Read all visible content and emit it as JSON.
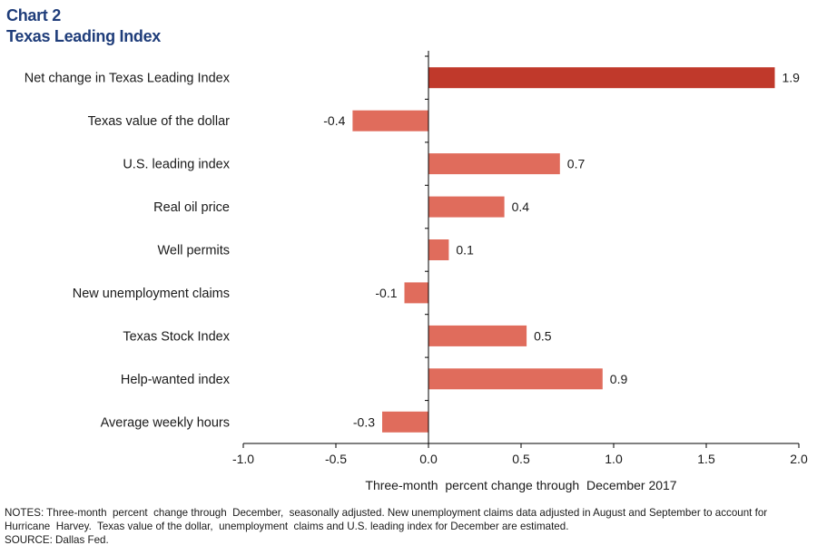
{
  "header": {
    "chart_number": "Chart 2",
    "title": "Texas Leading Index"
  },
  "colors": {
    "highlight_bar": "#c0392b",
    "bar": "#e06c5c",
    "axis": "#000000",
    "title": "#1f3d7a"
  },
  "chart_data": {
    "type": "bar",
    "orientation": "horizontal",
    "categories": [
      "Net change in Texas Leading Index",
      "Texas value of the dollar",
      "U.S. leading index",
      "Real oil price",
      "Well permits",
      "New unemployment claims",
      "Texas Stock Index",
      "Help-wanted index",
      "Average weekly hours"
    ],
    "values": [
      1.9,
      -0.4,
      0.7,
      0.4,
      0.1,
      -0.1,
      0.5,
      0.9,
      -0.3
    ],
    "bar_values": [
      1.87,
      -0.41,
      0.71,
      0.41,
      0.11,
      -0.13,
      0.53,
      0.94,
      -0.25
    ],
    "value_labels": [
      "1.9",
      "-0.4",
      "0.7",
      "0.4",
      "0.1",
      "-0.1",
      "0.5",
      "0.9",
      "-0.3"
    ],
    "highlight_index": 0,
    "xlim": [
      -1.0,
      2.0
    ],
    "xticks": [
      -1.0,
      -0.5,
      0.0,
      0.5,
      1.0,
      1.5,
      2.0
    ],
    "xtick_labels": [
      "-1.0",
      "-0.5",
      "0.0",
      "0.5",
      "1.0",
      "1.5",
      "2.0"
    ],
    "xlabel": "Three-month  percent change through  December 2017",
    "ylabel": "",
    "grid": false,
    "legend": "none"
  },
  "notes": {
    "notes_line": "NOTES: Three-month  percent  change through  December,  seasonally adjusted. New unemployment claims data adjusted in August and September to account for Hurricane  Harvey.  Texas value of the dollar,  unemployment  claims and U.S. leading index for December are estimated.",
    "source_line": "SOURCE: Dallas Fed."
  }
}
